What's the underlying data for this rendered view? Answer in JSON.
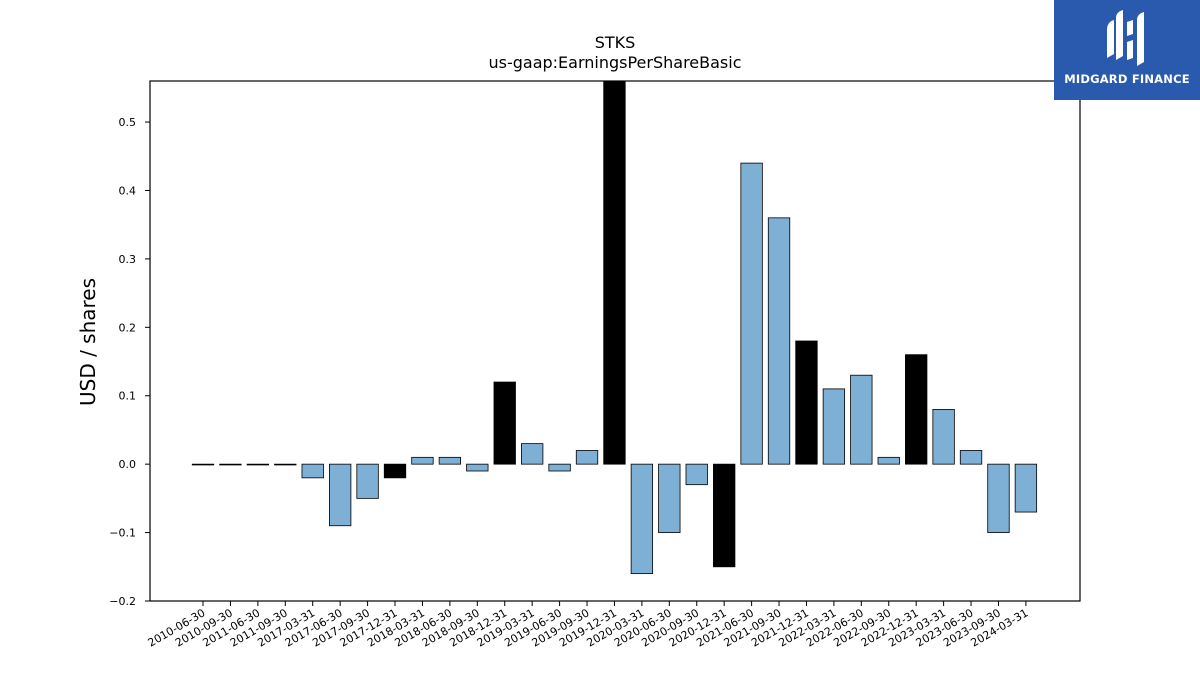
{
  "chart_data": {
    "type": "bar",
    "title": "STKS",
    "subtitle": "us-gaap:EarningsPerShareBasic",
    "xlabel": "",
    "ylabel": "USD / shares",
    "ylim": [
      -0.2,
      0.56
    ],
    "yticks": [
      "0.5",
      "0.4",
      "0.3",
      "0.2",
      "0.1",
      "0.0",
      "−0.1",
      "−0.2"
    ],
    "ytick_values": [
      0.5,
      0.4,
      0.3,
      0.2,
      0.1,
      0.0,
      -0.1,
      -0.2
    ],
    "grid": false,
    "colors": {
      "regular": "#7eb0d5",
      "annual": "#000000",
      "edge": "#000000"
    },
    "categories": [
      "2010-06-30",
      "2010-09-30",
      "2011-06-30",
      "2011-09-30",
      "2017-03-31",
      "2017-06-30",
      "2017-09-30",
      "2017-12-31",
      "2018-03-31",
      "2018-06-30",
      "2018-09-30",
      "2018-12-31",
      "2019-03-31",
      "2019-06-30",
      "2019-09-30",
      "2019-12-31",
      "2020-03-31",
      "2020-06-30",
      "2020-09-30",
      "2020-12-31",
      "2021-06-30",
      "2021-09-30",
      "2021-12-31",
      "2022-03-31",
      "2022-06-30",
      "2022-09-30",
      "2022-12-31",
      "2023-03-31",
      "2023-06-30",
      "2023-09-30",
      "2024-03-31"
    ],
    "values": [
      0.0,
      0.0,
      0.0,
      0.0,
      -0.02,
      -0.09,
      -0.05,
      -0.02,
      0.01,
      0.01,
      -0.01,
      0.12,
      0.03,
      -0.01,
      0.02,
      0.56,
      -0.16,
      -0.1,
      -0.03,
      -0.15,
      0.44,
      0.36,
      0.18,
      0.11,
      0.13,
      0.01,
      0.16,
      0.08,
      0.02,
      -0.1,
      -0.07
    ],
    "annual": [
      false,
      false,
      false,
      false,
      false,
      false,
      false,
      true,
      false,
      false,
      false,
      true,
      false,
      false,
      false,
      true,
      false,
      false,
      false,
      true,
      false,
      false,
      true,
      false,
      false,
      false,
      true,
      false,
      false,
      false,
      false
    ]
  },
  "logo": {
    "text": "MIDGARD FINANCE"
  }
}
